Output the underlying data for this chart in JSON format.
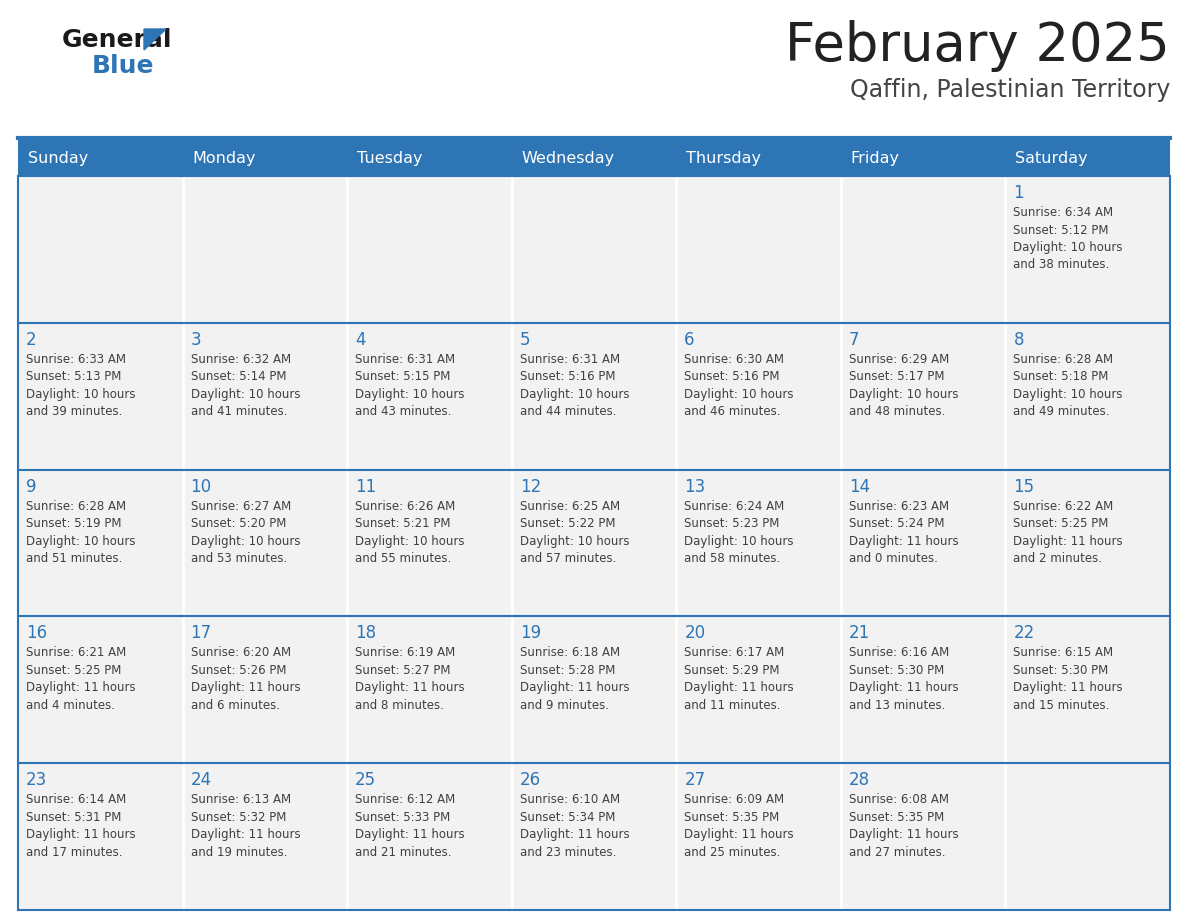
{
  "title": "February 2025",
  "subtitle": "Qaffin, Palestinian Territory",
  "days_of_week": [
    "Sunday",
    "Monday",
    "Tuesday",
    "Wednesday",
    "Thursday",
    "Friday",
    "Saturday"
  ],
  "header_bg_color": "#2E75B6",
  "header_text_color": "#FFFFFF",
  "cell_bg_color": "#F2F2F2",
  "cell_border_color": "#2E75B6",
  "day_num_color": "#2E75B6",
  "info_text_color": "#404040",
  "title_color": "#222222",
  "subtitle_color": "#444444",
  "logo_general_color": "#1A1A1A",
  "logo_blue_color": "#2E75B6",
  "weeks": [
    [
      {
        "day": null,
        "info": null
      },
      {
        "day": null,
        "info": null
      },
      {
        "day": null,
        "info": null
      },
      {
        "day": null,
        "info": null
      },
      {
        "day": null,
        "info": null
      },
      {
        "day": null,
        "info": null
      },
      {
        "day": 1,
        "info": "Sunrise: 6:34 AM\nSunset: 5:12 PM\nDaylight: 10 hours\nand 38 minutes."
      }
    ],
    [
      {
        "day": 2,
        "info": "Sunrise: 6:33 AM\nSunset: 5:13 PM\nDaylight: 10 hours\nand 39 minutes."
      },
      {
        "day": 3,
        "info": "Sunrise: 6:32 AM\nSunset: 5:14 PM\nDaylight: 10 hours\nand 41 minutes."
      },
      {
        "day": 4,
        "info": "Sunrise: 6:31 AM\nSunset: 5:15 PM\nDaylight: 10 hours\nand 43 minutes."
      },
      {
        "day": 5,
        "info": "Sunrise: 6:31 AM\nSunset: 5:16 PM\nDaylight: 10 hours\nand 44 minutes."
      },
      {
        "day": 6,
        "info": "Sunrise: 6:30 AM\nSunset: 5:16 PM\nDaylight: 10 hours\nand 46 minutes."
      },
      {
        "day": 7,
        "info": "Sunrise: 6:29 AM\nSunset: 5:17 PM\nDaylight: 10 hours\nand 48 minutes."
      },
      {
        "day": 8,
        "info": "Sunrise: 6:28 AM\nSunset: 5:18 PM\nDaylight: 10 hours\nand 49 minutes."
      }
    ],
    [
      {
        "day": 9,
        "info": "Sunrise: 6:28 AM\nSunset: 5:19 PM\nDaylight: 10 hours\nand 51 minutes."
      },
      {
        "day": 10,
        "info": "Sunrise: 6:27 AM\nSunset: 5:20 PM\nDaylight: 10 hours\nand 53 minutes."
      },
      {
        "day": 11,
        "info": "Sunrise: 6:26 AM\nSunset: 5:21 PM\nDaylight: 10 hours\nand 55 minutes."
      },
      {
        "day": 12,
        "info": "Sunrise: 6:25 AM\nSunset: 5:22 PM\nDaylight: 10 hours\nand 57 minutes."
      },
      {
        "day": 13,
        "info": "Sunrise: 6:24 AM\nSunset: 5:23 PM\nDaylight: 10 hours\nand 58 minutes."
      },
      {
        "day": 14,
        "info": "Sunrise: 6:23 AM\nSunset: 5:24 PM\nDaylight: 11 hours\nand 0 minutes."
      },
      {
        "day": 15,
        "info": "Sunrise: 6:22 AM\nSunset: 5:25 PM\nDaylight: 11 hours\nand 2 minutes."
      }
    ],
    [
      {
        "day": 16,
        "info": "Sunrise: 6:21 AM\nSunset: 5:25 PM\nDaylight: 11 hours\nand 4 minutes."
      },
      {
        "day": 17,
        "info": "Sunrise: 6:20 AM\nSunset: 5:26 PM\nDaylight: 11 hours\nand 6 minutes."
      },
      {
        "day": 18,
        "info": "Sunrise: 6:19 AM\nSunset: 5:27 PM\nDaylight: 11 hours\nand 8 minutes."
      },
      {
        "day": 19,
        "info": "Sunrise: 6:18 AM\nSunset: 5:28 PM\nDaylight: 11 hours\nand 9 minutes."
      },
      {
        "day": 20,
        "info": "Sunrise: 6:17 AM\nSunset: 5:29 PM\nDaylight: 11 hours\nand 11 minutes."
      },
      {
        "day": 21,
        "info": "Sunrise: 6:16 AM\nSunset: 5:30 PM\nDaylight: 11 hours\nand 13 minutes."
      },
      {
        "day": 22,
        "info": "Sunrise: 6:15 AM\nSunset: 5:30 PM\nDaylight: 11 hours\nand 15 minutes."
      }
    ],
    [
      {
        "day": 23,
        "info": "Sunrise: 6:14 AM\nSunset: 5:31 PM\nDaylight: 11 hours\nand 17 minutes."
      },
      {
        "day": 24,
        "info": "Sunrise: 6:13 AM\nSunset: 5:32 PM\nDaylight: 11 hours\nand 19 minutes."
      },
      {
        "day": 25,
        "info": "Sunrise: 6:12 AM\nSunset: 5:33 PM\nDaylight: 11 hours\nand 21 minutes."
      },
      {
        "day": 26,
        "info": "Sunrise: 6:10 AM\nSunset: 5:34 PM\nDaylight: 11 hours\nand 23 minutes."
      },
      {
        "day": 27,
        "info": "Sunrise: 6:09 AM\nSunset: 5:35 PM\nDaylight: 11 hours\nand 25 minutes."
      },
      {
        "day": 28,
        "info": "Sunrise: 6:08 AM\nSunset: 5:35 PM\nDaylight: 11 hours\nand 27 minutes."
      },
      {
        "day": null,
        "info": null
      }
    ]
  ]
}
